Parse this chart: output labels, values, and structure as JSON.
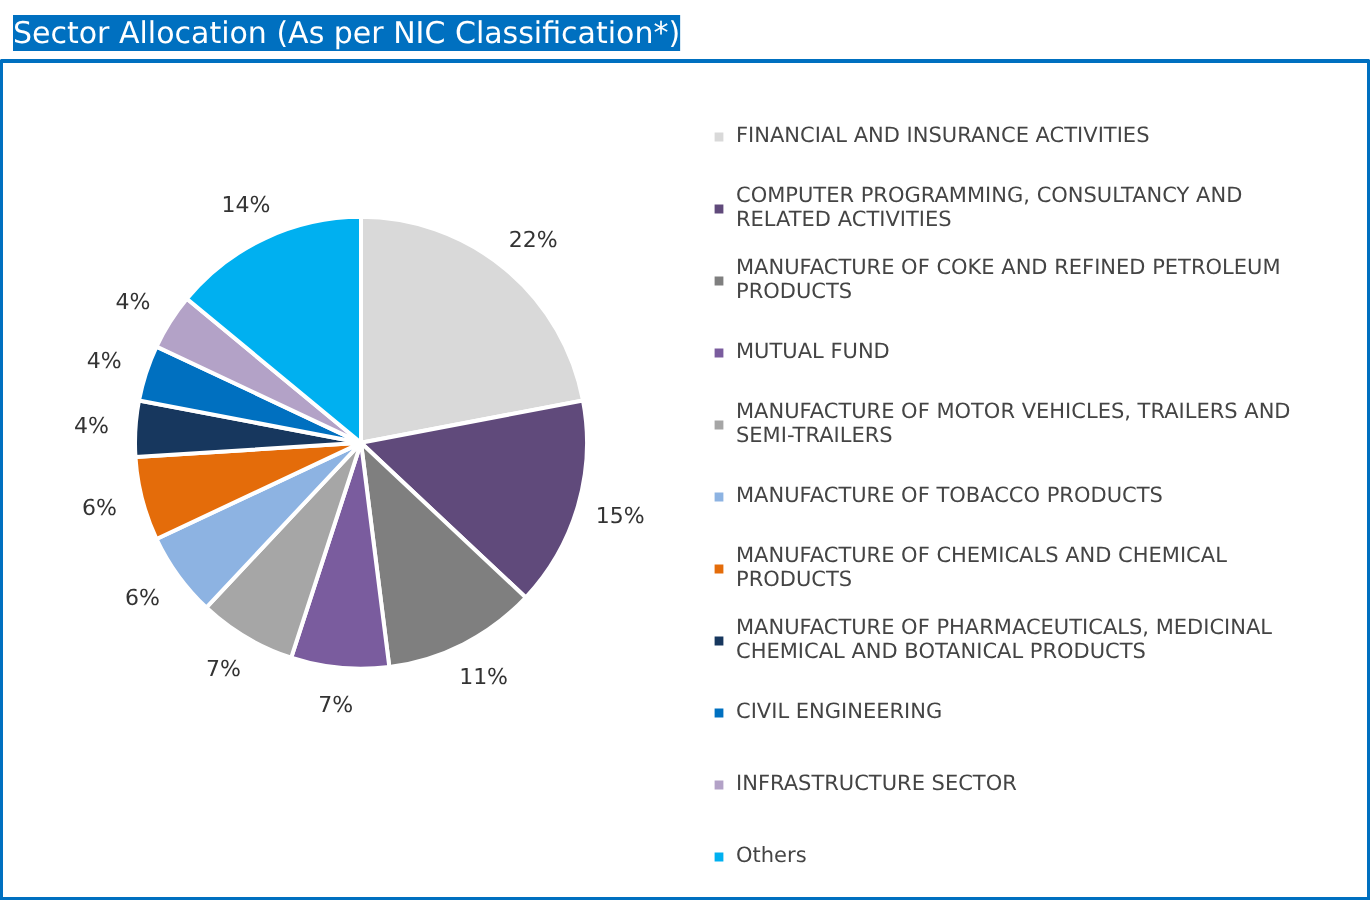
{
  "chart_data": {
    "type": "pie",
    "title": "Sector Allocation (As per NIC Classification*)",
    "categories": [
      "FINANCIAL AND INSURANCE ACTIVITIES",
      "COMPUTER PROGRAMMING, CONSULTANCY AND\nRELATED ACTIVITIES",
      "MANUFACTURE OF COKE AND REFINED PETROLEUM\nPRODUCTS",
      "MUTUAL FUND",
      "MANUFACTURE OF MOTOR VEHICLES, TRAILERS AND\nSEMI-TRAILERS",
      "MANUFACTURE OF TOBACCO PRODUCTS",
      "MANUFACTURE OF CHEMICALS AND CHEMICAL\nPRODUCTS",
      "MANUFACTURE OF PHARMACEUTICALS, MEDICINAL\nCHEMICAL AND BOTANICAL PRODUCTS",
      "CIVIL ENGINEERING",
      "INFRASTRUCTURE SECTOR",
      "Others"
    ],
    "values": [
      22,
      15,
      11,
      7,
      7,
      6,
      6,
      4,
      4,
      4,
      14
    ],
    "value_labels": [
      "22%",
      "15%",
      "11%",
      "7%",
      "7%",
      "6%",
      "6%",
      "4%",
      "4%",
      "4%",
      "14%"
    ],
    "colors": [
      "#d9d9d9",
      "#604a7b",
      "#7f7f7f",
      "#7a5c9e",
      "#a6a6a6",
      "#8db3e2",
      "#e46c0a",
      "#17375e",
      "#0070c0",
      "#b3a2c7",
      "#00b0f0"
    ],
    "legend": "right"
  }
}
